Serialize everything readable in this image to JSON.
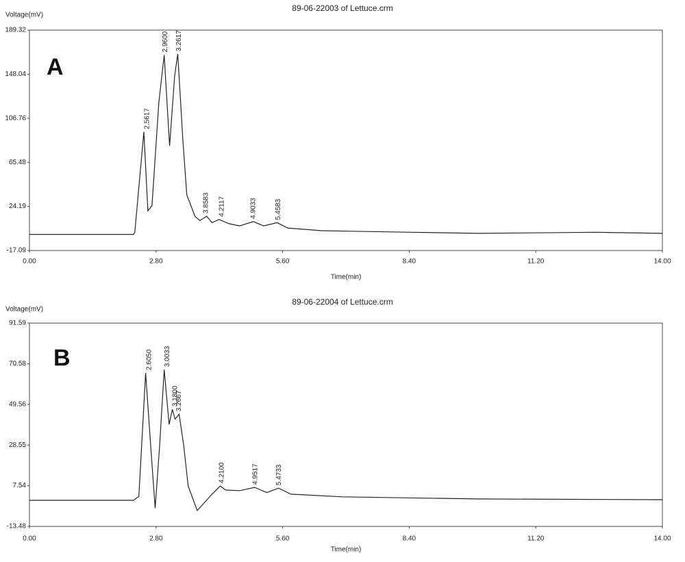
{
  "chart_data": [
    {
      "type": "line",
      "title": "89-06-22003 of Lettuce.crm",
      "panel_label": "A",
      "ylabel": "Voltage(mV)",
      "xlabel": "Time(min)",
      "x": [
        0,
        2.3,
        2.33,
        2.53,
        2.62,
        2.71,
        2.86,
        2.98,
        3.1,
        3.21,
        3.28,
        3.39,
        3.48,
        3.66,
        3.77,
        3.92,
        4.04,
        4.19,
        4.42,
        4.65,
        4.95,
        5.18,
        5.48,
        5.71,
        6.46,
        8.43,
        9.94,
        12.52,
        14
      ],
      "series": [
        {
          "color": "#222222",
          "values": [
            -2,
            -2,
            0,
            94,
            20,
            25,
            121,
            166,
            81,
            146,
            167,
            89,
            35,
            15,
            11,
            15,
            9,
            12,
            8,
            6,
            10,
            6,
            9,
            4,
            1.5,
            0,
            -1,
            0,
            -1
          ]
        }
      ],
      "xlim": [
        0,
        14
      ],
      "xticks": [
        {
          "value": 0,
          "label": "0.00"
        },
        {
          "value": 2.8,
          "label": "2.80"
        },
        {
          "value": 5.6,
          "label": "5.60"
        },
        {
          "value": 8.4,
          "label": "8.40"
        },
        {
          "value": 11.2,
          "label": "11.20"
        },
        {
          "value": 14,
          "label": "14.00"
        }
      ],
      "ylim": [
        -17.09,
        189.32
      ],
      "yticks": [
        -17.09,
        24.19,
        65.48,
        106.76,
        148.04,
        189.32
      ],
      "annotations": [
        {
          "text": "2.5617",
          "x": 2.5617,
          "y": 94
        },
        {
          "text": "2.9600",
          "x": 2.96,
          "y": 166
        },
        {
          "text": "3.2617",
          "x": 3.2617,
          "y": 167
        },
        {
          "text": "3.8583",
          "x": 3.8583,
          "y": 15
        },
        {
          "text": "4.2117",
          "x": 4.2117,
          "y": 12
        },
        {
          "text": "4.9033",
          "x": 4.9033,
          "y": 10
        },
        {
          "text": "5.4583",
          "x": 5.4583,
          "y": 9
        }
      ]
    },
    {
      "type": "line",
      "title": "89-06-22004 of Lettuce.crm",
      "panel_label": "B",
      "ylabel": "Voltage(mV)",
      "xlabel": "Time(min)",
      "x": [
        0,
        2.3,
        2.42,
        2.57,
        2.68,
        2.78,
        2.88,
        2.98,
        3.09,
        3.16,
        3.22,
        3.31,
        3.41,
        3.51,
        3.71,
        3.86,
        4.04,
        4.22,
        4.34,
        4.65,
        4.98,
        5.25,
        5.51,
        5.78,
        6.92,
        9.94,
        14
      ],
      "series": [
        {
          "color": "#222222",
          "values": [
            0,
            0,
            2,
            65.8,
            28.6,
            -4,
            28.6,
            67.5,
            39.2,
            47,
            42,
            44.5,
            28.6,
            7.4,
            -5.3,
            -1.4,
            3.2,
            7.4,
            5.3,
            5,
            6.7,
            4,
            6.3,
            3.2,
            1.8,
            0.7,
            0.3
          ]
        }
      ],
      "xlim": [
        0,
        14
      ],
      "xticks": [
        {
          "value": 0,
          "label": "0.00"
        },
        {
          "value": 2.8,
          "label": "2.80"
        },
        {
          "value": 5.6,
          "label": "5.60"
        },
        {
          "value": 8.4,
          "label": "8.40"
        },
        {
          "value": 11.2,
          "label": "11.20"
        },
        {
          "value": 14,
          "label": "14.00"
        }
      ],
      "ylim": [
        -13.48,
        91.59
      ],
      "yticks": [
        -13.48,
        7.54,
        28.55,
        49.56,
        70.58,
        91.59
      ],
      "annotations": [
        {
          "text": "2.6050",
          "x": 2.605,
          "y": 65.8
        },
        {
          "text": "3.0033",
          "x": 3.0033,
          "y": 67.5
        },
        {
          "text": "3.1800",
          "x": 3.18,
          "y": 47
        },
        {
          "text": "3.2667",
          "x": 3.2667,
          "y": 44.5
        },
        {
          "text": "4.2100",
          "x": 4.21,
          "y": 7.4
        },
        {
          "text": "4.9517",
          "x": 4.9517,
          "y": 6.7
        },
        {
          "text": "5.4733",
          "x": 5.4733,
          "y": 6.3
        }
      ]
    }
  ]
}
